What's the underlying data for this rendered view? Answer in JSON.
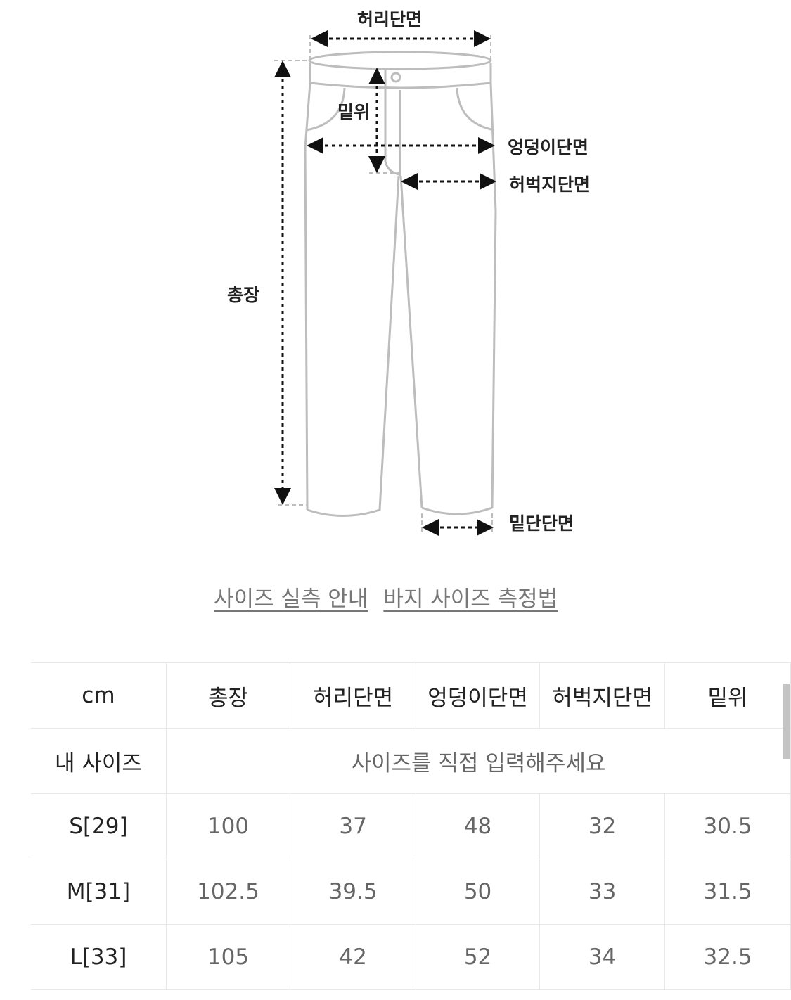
{
  "diagram": {
    "labels": {
      "waist": "허리단면",
      "rise": "밑위",
      "hip": "엉덩이단면",
      "thigh": "허벅지단면",
      "length": "총장",
      "hem": "밑단단면"
    }
  },
  "links": [
    "사이즈 실측 안내",
    "바지 사이즈 측정법"
  ],
  "table": {
    "headers": [
      "cm",
      "총장",
      "허리단면",
      "엉덩이단면",
      "허벅지단면",
      "밑위"
    ],
    "my_size": {
      "label": "내 사이즈",
      "placeholder": "사이즈를 직접 입력해주세요"
    },
    "rows": [
      [
        "S[29]",
        "100",
        "37",
        "48",
        "32",
        "30.5"
      ],
      [
        "M[31]",
        "102.5",
        "39.5",
        "50",
        "33",
        "31.5"
      ],
      [
        "L[33]",
        "105",
        "42",
        "52",
        "34",
        "32.5"
      ]
    ]
  }
}
